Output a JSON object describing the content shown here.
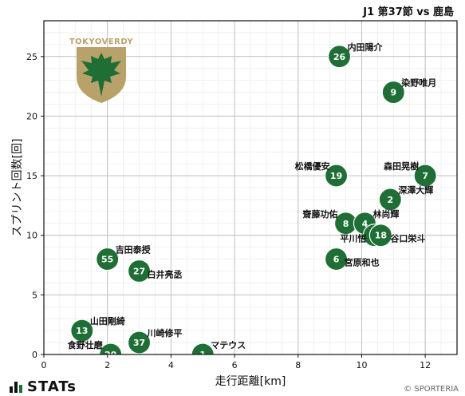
{
  "header": {
    "title": "J1 第37節 vs 鹿島"
  },
  "branding": {
    "team_logo_text": "TOKYOVERDY",
    "stats_label": "STATs",
    "credit": "© SPORTERIA"
  },
  "colors": {
    "marker": "#1e6e35",
    "marker_text": "#ffffff",
    "grid": "#cccccc",
    "logo_gold": "#b9a26a",
    "logo_green": "#1e6e35"
  },
  "chart_data": {
    "type": "scatter",
    "title": "J1 第37節 vs 鹿島",
    "xlabel": "走行距離[km]",
    "ylabel": "スプリント回数[回]",
    "xlim": [
      0,
      13
    ],
    "ylim": [
      0,
      28
    ],
    "xticks": [
      0,
      2,
      4,
      6,
      8,
      10,
      12
    ],
    "yticks": [
      0,
      5,
      10,
      15,
      20,
      25
    ],
    "grid": true,
    "points": [
      {
        "number": "26",
        "name": "内田陽介",
        "x": 9.3,
        "y": 25
      },
      {
        "number": "9",
        "name": "染野唯月",
        "x": 11.0,
        "y": 22
      },
      {
        "number": "19",
        "name": "松橋優安",
        "x": 9.2,
        "y": 15
      },
      {
        "number": "7",
        "name": "森田晃樹",
        "x": 12.0,
        "y": 15
      },
      {
        "number": "2",
        "name": "深澤大輝",
        "x": 10.9,
        "y": 13
      },
      {
        "number": "8",
        "name": "齋藤功佑",
        "x": 9.5,
        "y": 11
      },
      {
        "number": "4",
        "name": "林尚輝",
        "x": 10.1,
        "y": 11
      },
      {
        "number": "3",
        "name": "平川悟",
        "x": 10.4,
        "y": 10
      },
      {
        "number": "18",
        "name": "谷口栄斗",
        "x": 10.6,
        "y": 10
      },
      {
        "number": "6",
        "name": "宮原和也",
        "x": 9.2,
        "y": 8
      },
      {
        "number": "55",
        "name": "吉田泰授",
        "x": 2.0,
        "y": 8
      },
      {
        "number": "27",
        "name": "白井亮丞",
        "x": 3.0,
        "y": 7
      },
      {
        "number": "13",
        "name": "山田剛綺",
        "x": 1.2,
        "y": 2
      },
      {
        "number": "37",
        "name": "川崎修平",
        "x": 3.0,
        "y": 1
      },
      {
        "number": "20",
        "name": "食野壮磨",
        "x": 2.1,
        "y": 0
      },
      {
        "number": "1",
        "name": "マテウス",
        "x": 5.0,
        "y": 0
      }
    ]
  }
}
